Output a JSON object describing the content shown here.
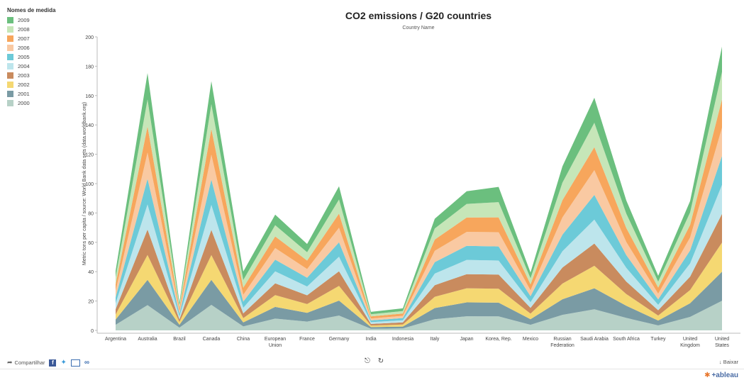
{
  "legend": {
    "title": "Nomes de medida",
    "items": [
      {
        "label": "2009",
        "color": "#6bbf7e"
      },
      {
        "label": "2008",
        "color": "#c6e6b8"
      },
      {
        "label": "2007",
        "color": "#f7a65c"
      },
      {
        "label": "2006",
        "color": "#f9c9a2"
      },
      {
        "label": "2005",
        "color": "#6ccad8"
      },
      {
        "label": "2004",
        "color": "#bde5ec"
      },
      {
        "label": "2003",
        "color": "#c98b5e"
      },
      {
        "label": "2002",
        "color": "#f5d872"
      },
      {
        "label": "2001",
        "color": "#7a9ba4"
      },
      {
        "label": "2000",
        "color": "#b7d1c7"
      }
    ]
  },
  "toolbar": {
    "share_label": "Compartilhar",
    "facebook_icon": "facebook-icon",
    "twitter_icon": "twitter-icon",
    "mail_icon": "mail-icon",
    "link_icon": "link-icon",
    "download_label": "Baixar",
    "logo_text": "+ableau"
  },
  "chart_data": {
    "type": "area",
    "title": "CO2 emissions / G20 countries",
    "subtitle": "Country Name",
    "ylabel": "Metric tons per capita / source: World Bank data sets (data.worldbank.org)",
    "xlabel": "",
    "ylim": [
      0,
      200
    ],
    "yticks": [
      0,
      20,
      40,
      60,
      80,
      100,
      120,
      140,
      160,
      180,
      200
    ],
    "stacked": true,
    "grid": false,
    "legend_position": "left",
    "categories": [
      "Argentina",
      "Australia",
      "Brazil",
      "Canada",
      "China",
      "European Union",
      "France",
      "Germany",
      "India",
      "Indonesia",
      "Italy",
      "Japan",
      "Korea, Rep.",
      "Mexico",
      "Russian Federation",
      "Saudi Arabia",
      "South Africa",
      "Turkey",
      "United Kingdom",
      "United States"
    ],
    "series": [
      {
        "name": "2000",
        "values": [
          3.8,
          17.2,
          1.9,
          17.4,
          2.7,
          8.0,
          6.0,
          10.1,
          1.1,
          1.3,
          7.6,
          9.6,
          9.5,
          3.8,
          10.6,
          14.4,
          8.5,
          3.4,
          9.2,
          20.2
        ]
      },
      {
        "name": "2001",
        "values": [
          3.6,
          17.2,
          1.9,
          17.0,
          2.7,
          8.0,
          6.0,
          10.2,
          1.1,
          1.3,
          7.6,
          9.5,
          9.4,
          3.8,
          10.6,
          14.3,
          8.3,
          3.3,
          9.3,
          19.8
        ]
      },
      {
        "name": "2002",
        "values": [
          3.4,
          17.0,
          1.9,
          16.9,
          2.9,
          8.0,
          5.9,
          10.0,
          1.1,
          1.4,
          7.7,
          9.6,
          9.5,
          3.8,
          10.7,
          15.3,
          8.0,
          3.4,
          9.0,
          19.8
        ]
      },
      {
        "name": "2003",
        "values": [
          3.6,
          17.3,
          1.8,
          17.2,
          3.3,
          8.1,
          6.0,
          10.0,
          1.1,
          1.4,
          7.9,
          9.6,
          9.6,
          3.9,
          10.9,
          15.2,
          8.5,
          3.6,
          9.1,
          19.6
        ]
      },
      {
        "name": "2004",
        "values": [
          4.0,
          17.1,
          1.9,
          17.0,
          3.8,
          8.1,
          6.0,
          9.9,
          1.2,
          1.5,
          7.9,
          9.7,
          9.6,
          3.9,
          11.1,
          16.3,
          9.3,
          3.7,
          9.0,
          19.8
        ]
      },
      {
        "name": "2005",
        "values": [
          4.1,
          17.5,
          1.9,
          17.3,
          4.2,
          8.0,
          6.0,
          9.8,
          1.2,
          1.5,
          7.8,
          9.6,
          9.6,
          4.1,
          11.3,
          16.8,
          8.7,
          3.7,
          8.9,
          19.7
        ]
      },
      {
        "name": "2006",
        "values": [
          4.4,
          17.8,
          1.9,
          16.9,
          4.6,
          7.9,
          5.9,
          9.9,
          1.3,
          1.5,
          7.7,
          9.5,
          9.7,
          4.0,
          11.8,
          16.9,
          9.0,
          3.9,
          8.8,
          19.2
        ]
      },
      {
        "name": "2007",
        "values": [
          4.5,
          17.9,
          1.9,
          17.6,
          4.9,
          7.9,
          5.8,
          9.7,
          1.4,
          1.6,
          7.7,
          9.8,
          10.1,
          4.1,
          11.7,
          15.7,
          9.5,
          4.2,
          8.6,
          19.4
        ]
      },
      {
        "name": "2008",
        "values": [
          4.8,
          18.3,
          2.0,
          16.8,
          5.2,
          7.7,
          5.7,
          9.6,
          1.5,
          1.7,
          7.5,
          9.3,
          10.4,
          4.1,
          12.0,
          16.6,
          9.8,
          4.0,
          8.5,
          18.6
        ]
      },
      {
        "name": "2009",
        "values": [
          4.4,
          18.0,
          1.9,
          15.7,
          5.8,
          7.2,
          5.6,
          9.0,
          1.6,
          1.8,
          6.7,
          8.6,
          10.4,
          3.9,
          11.1,
          17.0,
          9.0,
          4.0,
          7.7,
          17.3
        ]
      }
    ]
  }
}
